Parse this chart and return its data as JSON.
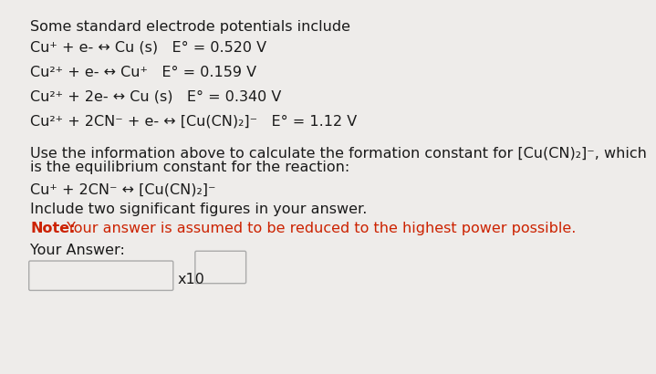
{
  "bg_color": "#eeecea",
  "text_color": "#1a1a1a",
  "note_color": "#cc2200",
  "title": "Some standard electrode potentials include",
  "line1": "Cu⁺ + e- ↔ Cu (s)   E° = 0.520 V",
  "line2": "Cu²⁺ + e- ↔ Cu⁺   E° = 0.159 V",
  "line3": "Cu²⁺ + 2e- ↔ Cu (s)   E° = 0.340 V",
  "line4": "Cu²⁺ + 2CN⁻ + e- ↔ [Cu(CN)₂]⁻   E° = 1.12 V",
  "para1": "Use the information above to calculate the formation constant for [Cu(CN)₂]⁻, which",
  "para2": "is the equilibrium constant for the reaction:",
  "reaction": "Cu⁺ + 2CN⁻ ↔ [Cu(CN)₂]⁻",
  "instruction": "Include two significant figures in your answer.",
  "note_bold": "Note:",
  "note_rest": " Your answer is assumed to be reduced to the highest power possible.",
  "your_answer": "Your Answer:",
  "x10_label": "x10",
  "fs": 11.5,
  "fs_note": 11.5
}
